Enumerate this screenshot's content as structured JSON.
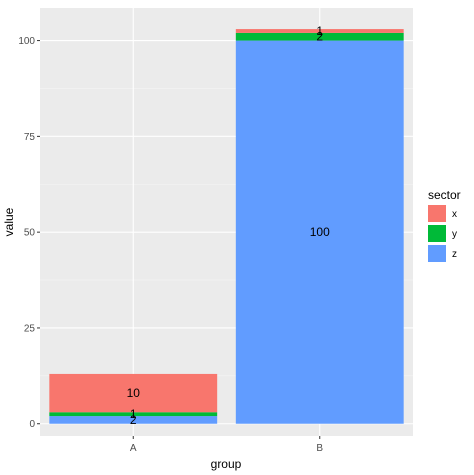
{
  "chart_data": {
    "type": "bar",
    "stacked": true,
    "xlabel": "group",
    "ylabel": "value",
    "categories": [
      "A",
      "B"
    ],
    "ylim": [
      -3.2,
      108.5
    ],
    "yticks": [
      0,
      25,
      50,
      75,
      100
    ],
    "grid": true,
    "legend": {
      "title": "sector",
      "position": "right",
      "entries": [
        "x",
        "y",
        "z"
      ]
    },
    "series": [
      {
        "name": "z",
        "values": [
          2,
          100
        ],
        "color": "#619CFF"
      },
      {
        "name": "y",
        "values": [
          1,
          2
        ],
        "color": "#00BA38"
      },
      {
        "name": "x",
        "values": [
          10,
          1
        ],
        "color": "#F8766D"
      }
    ],
    "stack_order_bottom_to_top": [
      "z",
      "y",
      "x"
    ],
    "colors": {
      "panel_background": "#EBEBEB",
      "grid_major": "#FFFFFF",
      "grid_minor": "#F5F5F5"
    }
  }
}
